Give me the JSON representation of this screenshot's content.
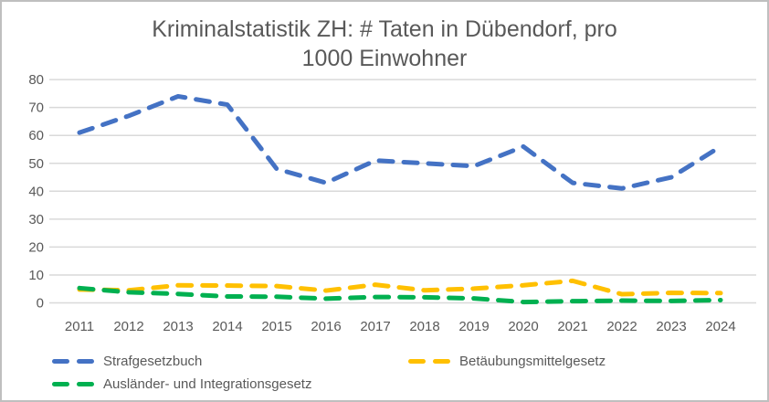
{
  "chart_data": {
    "type": "line",
    "line_style": "dashed",
    "title": "Kriminalstatistik ZH: # Taten in Dübendorf, pro 1000 Einwohner",
    "title_lines": [
      "Kriminalstatistik ZH: # Taten in Dübendorf, pro",
      "1000 Einwohner"
    ],
    "xlabel": "",
    "ylabel": "",
    "x": [
      2011,
      2012,
      2013,
      2014,
      2015,
      2016,
      2017,
      2018,
      2019,
      2020,
      2021,
      2022,
      2023,
      2024
    ],
    "series": [
      {
        "name": "Strafgesetzbuch",
        "color": "#4472C4",
        "values": [
          61,
          67,
          74,
          71,
          48,
          43,
          51,
          50,
          49,
          56,
          43,
          41,
          45,
          56
        ]
      },
      {
        "name": "Betäubungsmittelgesetz",
        "color": "#FFC000",
        "values": [
          4.8,
          4.5,
          6.3,
          6.2,
          6.0,
          4.4,
          6.5,
          4.5,
          5.1,
          6.3,
          7.9,
          3.1,
          3.6,
          3.5
        ]
      },
      {
        "name": "Ausländer- und Integrationsgesetz",
        "color": "#00B050",
        "values": [
          5.3,
          3.8,
          3.2,
          2.3,
          2.2,
          1.5,
          2.1,
          2.0,
          1.6,
          0.3,
          0.6,
          0.8,
          0.7,
          1.0
        ]
      }
    ],
    "ylim": [
      0,
      80
    ],
    "y_ticks": [
      0,
      10,
      20,
      30,
      40,
      50,
      60,
      70,
      80
    ],
    "grid": true,
    "legend_position": "bottom"
  },
  "styles": {
    "text_color": "#595959",
    "grid_color": "#d9d9d9",
    "border_color": "#bfbfbf",
    "background": "#ffffff"
  }
}
